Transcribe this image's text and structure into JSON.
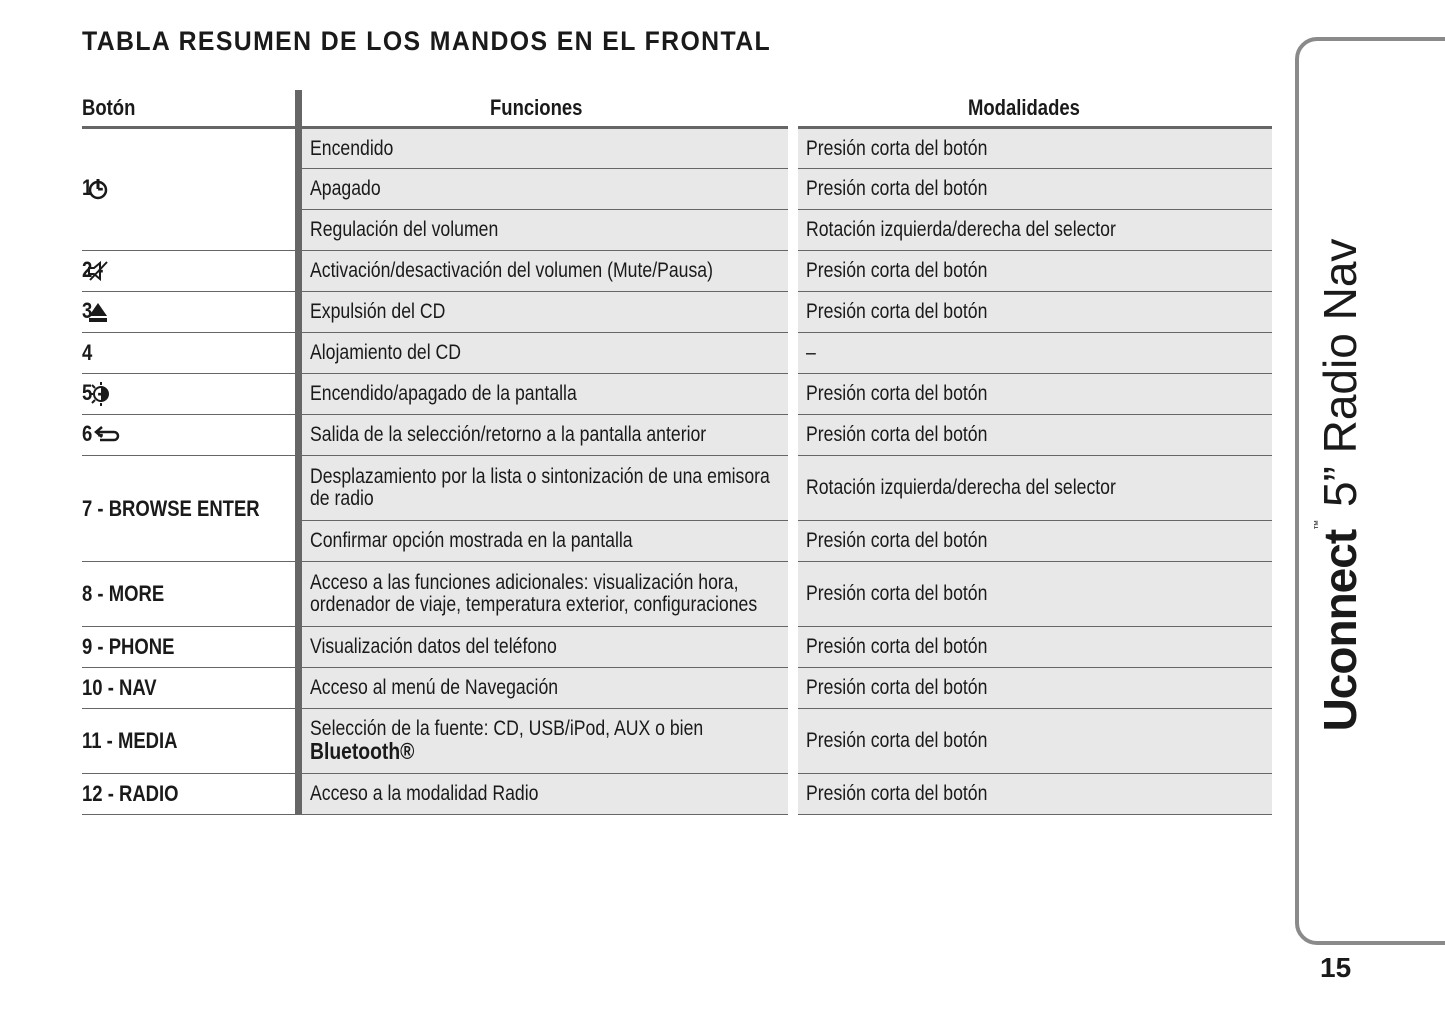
{
  "title": "TABLA RESUMEN DE LOS MANDOS EN EL FRONTAL",
  "table": {
    "headers": [
      "Botón",
      "Funciones",
      "Modalidades"
    ],
    "groups": [
      {
        "button": "1 -",
        "rows": [
          {
            "function": "Encendido",
            "mode": "Presión corta del botón"
          },
          {
            "function": "Apagado",
            "mode": "Presión corta del botón"
          },
          {
            "function": "Regulación del volumen",
            "mode": "Rotación izquierda/derecha del selector"
          }
        ]
      },
      {
        "button": "2 -",
        "rows": [
          {
            "function": "Activación/desactivación del volumen (Mute/Pausa)",
            "mode": "Presión corta del botón"
          }
        ]
      },
      {
        "button": "3 -",
        "rows": [
          {
            "function": "Expulsión del CD",
            "mode": "Presión corta del botón"
          }
        ]
      },
      {
        "button": "4",
        "rows": [
          {
            "function": "Alojamiento del CD",
            "mode": "–"
          }
        ]
      },
      {
        "button": "5 -",
        "rows": [
          {
            "function": "Encendido/apagado de la pantalla",
            "mode": "Presión corta del botón"
          }
        ]
      },
      {
        "button": "6 -",
        "rows": [
          {
            "function": "Salida de la selección/retorno a la pantalla anterior",
            "mode": "Presión corta del botón"
          }
        ]
      },
      {
        "button": "7 - BROWSE ENTER",
        "rows": [
          {
            "function": "Desplazamiento por la lista o sintonización de una emisora de radio",
            "mode": "Rotación izquierda/derecha del selector"
          },
          {
            "function": "Confirmar opción mostrada en la pantalla",
            "mode": "Presión corta del botón"
          }
        ]
      },
      {
        "button": "8 - MORE",
        "rows": [
          {
            "function": "Acceso a las funciones adicionales: visualización hora, ordenador de viaje, temperatura exterior, configuraciones",
            "mode": "Presión corta del botón"
          }
        ]
      },
      {
        "button": "9 - PHONE",
        "rows": [
          {
            "function": "Visualización datos del teléfono",
            "mode": "Presión corta del botón"
          }
        ]
      },
      {
        "button": "10 - NAV",
        "rows": [
          {
            "function": "Acceso al menú de Navegación",
            "mode": "Presión corta del botón"
          }
        ]
      },
      {
        "button": "11 - MEDIA",
        "rows": [
          {
            "function": "Selección de la fuente: CD, USB/iPod, AUX o bien",
            "function_emphasis": "Bluetooth®",
            "mode": "Presión corta del botón"
          }
        ]
      },
      {
        "button": "12 - RADIO",
        "rows": [
          {
            "function": "Acceso a la modalidad Radio",
            "mode": "Presión corta del botón"
          }
        ]
      }
    ]
  },
  "side_tab": {
    "brand": "Uconnect",
    "trademark": "™",
    "model": "5” Radio Nav"
  },
  "page_number": "15"
}
